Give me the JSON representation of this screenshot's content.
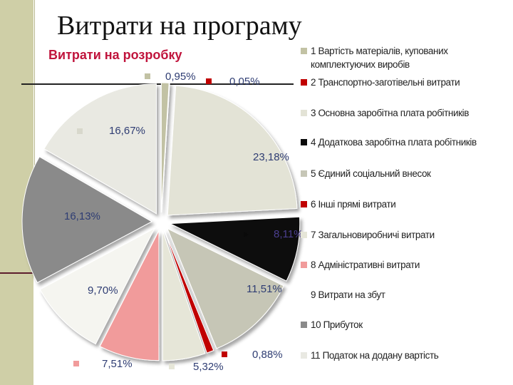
{
  "slide": {
    "title": "Витрати на програму"
  },
  "chart_data": {
    "type": "pie",
    "title": "Витрати на розробку",
    "series": [
      {
        "name": "1 Вартість матеріалів, купованих комплектуючих виробів",
        "value": 0.95,
        "label": "0,95%",
        "color": "#c2c2a4"
      },
      {
        "name": "2 Транспортно-заготівельні витрати",
        "value": 0.05,
        "label": "0,05%",
        "color": "#c00000"
      },
      {
        "name": "3 Основна заробітна плата робітників",
        "value": 23.18,
        "label": "23,18%",
        "color": "#e3e3d6"
      },
      {
        "name": "4 Додаткова заробітна плата робітників",
        "value": 8.11,
        "label": "8,11%",
        "color": "#0a0a0a"
      },
      {
        "name": "5 Єдиний соціальний внесок",
        "value": 11.51,
        "label": "11,51%",
        "color": "#c6c6b6"
      },
      {
        "name": "6 Інші прямі витрати",
        "value": 0.88,
        "label": "0,88%",
        "color": "#c00000"
      },
      {
        "name": "7 Загальновиробничі витрати",
        "value": 5.32,
        "label": "5,32%",
        "color": "#e6e6d8"
      },
      {
        "name": "8 Адміністративні витрати",
        "value": 7.51,
        "label": "7,51%",
        "color": "#f19b9b"
      },
      {
        "name": "9 Витрати на збут",
        "value": 9.7,
        "label": "9,70%",
        "color": "#f5f5f0"
      },
      {
        "name": "10 Прибуток",
        "value": 16.13,
        "label": "16,13%",
        "color": "#8a8a8a"
      },
      {
        "name": "11 Податок на додану вартість",
        "value": 16.67,
        "label": "16,67%",
        "color": "#e9e9e2"
      }
    ]
  }
}
